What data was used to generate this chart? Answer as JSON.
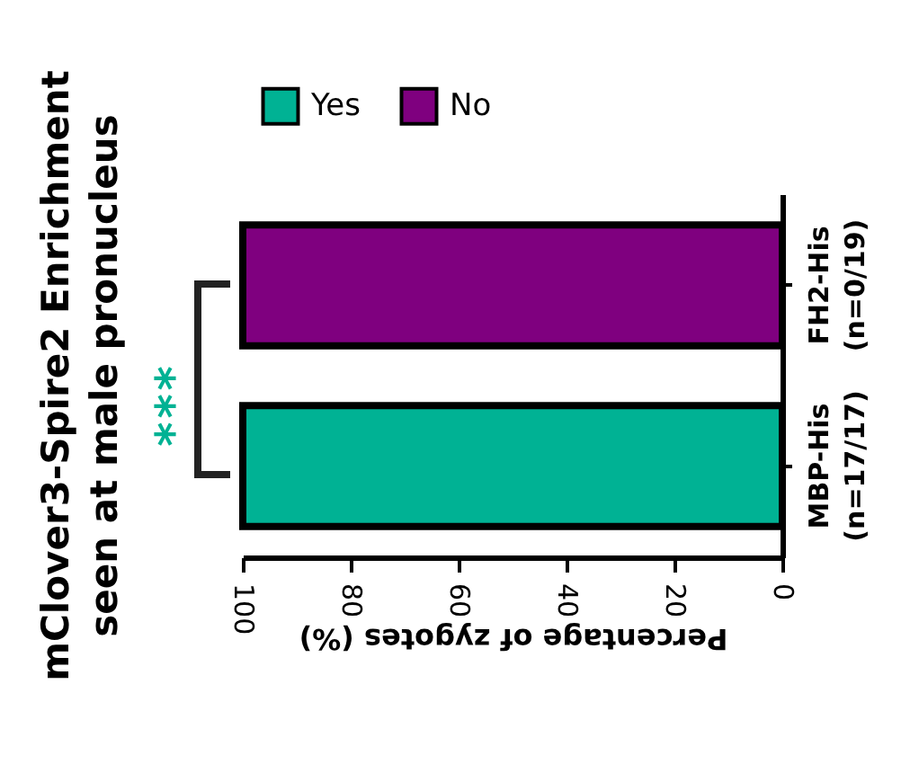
{
  "chart_data": {
    "type": "bar",
    "orientation": "horizontal",
    "title": "mClover3-Spire2 Enrichment\nseen at male pronucleus",
    "categories": [
      "FH2-His\n(n=0/19)",
      "MBP-His\n(n=17/17)"
    ],
    "series": [
      {
        "name": "Yes",
        "color": "#00b294",
        "values": [
          0,
          100
        ]
      },
      {
        "name": "No",
        "color": "#7f007f",
        "values": [
          100,
          0
        ]
      }
    ],
    "stacked": true,
    "xlabel": "Percentage of zygotes  (%)",
    "xlim": [
      100,
      0
    ],
    "xticks": [
      100,
      80,
      60,
      40,
      20,
      0
    ],
    "grid": false,
    "legend": "top",
    "annotations": [
      "***"
    ]
  }
}
